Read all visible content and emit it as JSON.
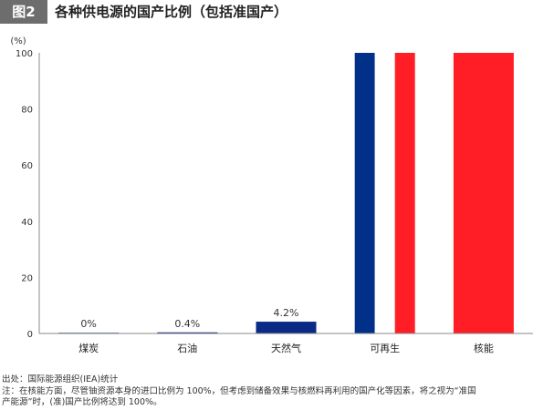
{
  "header": {
    "badge": "图2",
    "title": "各种供电源的国产比例（包括准国产）"
  },
  "chart_data": {
    "type": "bar",
    "ylabel": "(%)",
    "ylim": [
      0,
      100
    ],
    "yticks": [
      0,
      20,
      40,
      60,
      80,
      100
    ],
    "grid": false,
    "categories": [
      "煤炭",
      "石油",
      "天然气",
      "可再生",
      "核能"
    ],
    "values": [
      0,
      0.4,
      4.2,
      100,
      100
    ],
    "data_labels": [
      "0%",
      "0.4%",
      "4.2%",
      "",
      ""
    ],
    "colors": [
      "#0a2a86",
      "#0a2a86",
      "#0a2a86",
      "split:#003087|#ffffff|#ff1e26",
      "#ff1e26"
    ]
  },
  "notes": {
    "source": "出处：国际能源组织(IEA)统计",
    "note_line1": "注：在核能方面，尽管铀资源本身的进口比例为 100%，但考虑到储备效果与核燃料再利用的国产化等因素，将之视为“准国",
    "note_line2": "产能源”时，(准)国产比例将达到 100%。"
  }
}
